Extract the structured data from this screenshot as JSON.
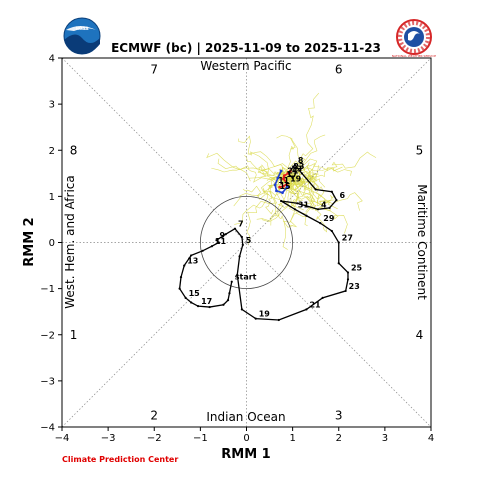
{
  "chart_data": {
    "type": "line",
    "title": "ECMWF (bc) | 2025-11-09 to 2025-11-23",
    "xlabel": "RMM 1",
    "ylabel": "RMM 2",
    "xlim": [
      -4,
      4
    ],
    "ylim": [
      -4,
      4
    ],
    "xticks": [
      "−4",
      "−3",
      "−2",
      "−1",
      "0",
      "1",
      "2",
      "3",
      "4"
    ],
    "yticks": [
      "−4",
      "−3",
      "−2",
      "−1",
      "0",
      "1",
      "2",
      "3",
      "4"
    ],
    "phase_numbers": [
      {
        "label": "7",
        "x": -2.0,
        "y": 3.75
      },
      {
        "label": "6",
        "x": 2.0,
        "y": 3.75
      },
      {
        "label": "8",
        "x": -3.75,
        "y": 2.0
      },
      {
        "label": "5",
        "x": 3.75,
        "y": 2.0
      },
      {
        "label": "1",
        "x": -3.75,
        "y": -2.0
      },
      {
        "label": "4",
        "x": 3.75,
        "y": -2.0
      },
      {
        "label": "2",
        "x": -2.0,
        "y": -3.75
      },
      {
        "label": "3",
        "x": 2.0,
        "y": -3.75
      }
    ],
    "regions": {
      "top": "Western Pacific",
      "bottom": "Indian Ocean",
      "left": "West. Hem. and Africa",
      "right": "Maritime Continent"
    },
    "unit_circle_radius": 1,
    "grid": "dotted diagonals and zero lines",
    "series": [
      {
        "role": "observed",
        "color": "#000000",
        "points": [
          {
            "x": -0.32,
            "y": -0.85,
            "label": "start"
          },
          {
            "x": -0.37,
            "y": -1.1
          },
          {
            "x": -0.4,
            "y": -1.25
          },
          {
            "x": -0.5,
            "y": -1.35
          },
          {
            "x": -0.8,
            "y": -1.4
          },
          {
            "x": -1.05,
            "y": -1.38,
            "label": "17"
          },
          {
            "x": -1.2,
            "y": -1.3
          },
          {
            "x": -1.32,
            "y": -1.2,
            "label": "15"
          },
          {
            "x": -1.45,
            "y": -1.0
          },
          {
            "x": -1.42,
            "y": -0.75
          },
          {
            "x": -1.35,
            "y": -0.5,
            "label": "13"
          },
          {
            "x": -1.2,
            "y": -0.28
          },
          {
            "x": -0.95,
            "y": -0.18
          },
          {
            "x": -0.75,
            "y": -0.08,
            "label": "11"
          },
          {
            "x": -0.6,
            "y": 0.0
          },
          {
            "x": -0.65,
            "y": 0.05,
            "label": "9"
          },
          {
            "x": -0.45,
            "y": 0.18
          },
          {
            "x": -0.25,
            "y": 0.3,
            "label": "7"
          },
          {
            "x": -0.1,
            "y": 0.12
          },
          {
            "x": -0.08,
            "y": -0.05,
            "label": "5"
          },
          {
            "x": -0.15,
            "y": -0.3
          },
          {
            "x": -0.2,
            "y": -0.7
          },
          {
            "x": -0.1,
            "y": -1.45
          },
          {
            "x": 0.2,
            "y": -1.65,
            "label": "19"
          },
          {
            "x": 0.7,
            "y": -1.68
          },
          {
            "x": 1.3,
            "y": -1.45,
            "label": "21"
          },
          {
            "x": 1.65,
            "y": -1.2
          },
          {
            "x": 2.15,
            "y": -1.05,
            "label": "23"
          },
          {
            "x": 2.2,
            "y": -0.8
          },
          {
            "x": 2.2,
            "y": -0.65,
            "label": "25"
          },
          {
            "x": 2.0,
            "y": -0.45
          },
          {
            "x": 2.0,
            "y": 0.0,
            "label": "27"
          },
          {
            "x": 1.85,
            "y": 0.25
          },
          {
            "x": 1.6,
            "y": 0.42,
            "label": "29"
          },
          {
            "x": 1.3,
            "y": 0.58
          },
          {
            "x": 1.05,
            "y": 0.72,
            "label": "31"
          },
          {
            "x": 0.75,
            "y": 0.9
          },
          {
            "x": 1.1,
            "y": 0.85
          },
          {
            "x": 1.55,
            "y": 0.72,
            "label": "4"
          },
          {
            "x": 1.8,
            "y": 0.75
          },
          {
            "x": 1.95,
            "y": 0.92,
            "label": "6"
          },
          {
            "x": 1.85,
            "y": 1.1
          },
          {
            "x": 1.5,
            "y": 1.15
          },
          {
            "x": 1.2,
            "y": 1.5
          },
          {
            "x": 1.05,
            "y": 1.68,
            "label": "8"
          },
          {
            "x": 0.9,
            "y": 1.5
          },
          {
            "x": 1.0,
            "y": 1.4
          }
        ]
      },
      {
        "role": "ensemble-mean",
        "color": "#e41a1c",
        "points": [
          {
            "x": 0.95,
            "y": 1.55,
            "label": "23"
          },
          {
            "x": 0.9,
            "y": 1.5,
            "label": "13"
          },
          {
            "x": 0.82,
            "y": 1.45,
            "label": "21"
          },
          {
            "x": 0.8,
            "y": 1.38,
            "label": "17"
          },
          {
            "x": 0.88,
            "y": 1.28,
            "label": "19"
          },
          {
            "x": 0.8,
            "y": 1.22
          },
          {
            "x": 0.72,
            "y": 1.2
          }
        ]
      },
      {
        "role": "ensemble-mean",
        "color": "#1f3fd1",
        "points": [
          {
            "x": 0.75,
            "y": 1.55
          },
          {
            "x": 0.68,
            "y": 1.4
          },
          {
            "x": 0.62,
            "y": 1.25,
            "label": "11"
          },
          {
            "x": 0.65,
            "y": 1.12,
            "label": "15"
          },
          {
            "x": 0.78,
            "y": 1.08
          },
          {
            "x": 0.88,
            "y": 1.2
          }
        ]
      }
    ],
    "ensemble_member_count": 51,
    "ensemble_color": "#d9d94a",
    "ensemble_anchor": {
      "x": 0.98,
      "y": 1.38
    }
  },
  "footer": {
    "credit": "Climate Prediction Center"
  },
  "logos": {
    "left": "NOAA",
    "right": "NATIONAL WEATHER SERVICE"
  },
  "colors": {
    "credit": "#e00000",
    "noaa_blue": "#1e73be",
    "nws_red": "#d62728"
  }
}
